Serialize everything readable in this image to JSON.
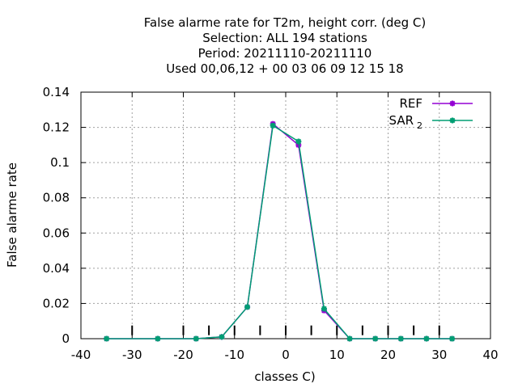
{
  "chart_data": {
    "type": "line",
    "title_lines": [
      "False alarme rate  for T2m, height corr. (deg C)",
      "Selection: ALL    194 stations",
      "Period: 20211110-20211110",
      "Used  00,06,12  + 00 03 06 09 12 15 18"
    ],
    "xlabel": "classes C)",
    "ylabel": "False alarme rate",
    "xlim": [
      -40,
      40
    ],
    "ylim": [
      0,
      0.14
    ],
    "xticks": [
      -40,
      -30,
      -20,
      -10,
      0,
      10,
      20,
      30,
      40
    ],
    "yticks": [
      0,
      0.02,
      0.04,
      0.06,
      0.08,
      0.1,
      0.12,
      0.14
    ],
    "xtick_labels": [
      "-40",
      "-30",
      "-20",
      "-10",
      "0",
      "10",
      "20",
      "30",
      "40"
    ],
    "ytick_labels": [
      "0",
      "0.02",
      "0.04",
      "0.06",
      "0.08",
      "0.1",
      "0.12",
      "0.14"
    ],
    "grid": true,
    "legend_position": "top-right",
    "class_boundaries": [
      -30,
      -20,
      -15,
      -10,
      -5,
      0,
      5,
      10,
      15,
      20,
      25,
      30
    ],
    "series": [
      {
        "name": "REF",
        "color": "#9400d3",
        "x": [
          -35,
          -25,
          -17.5,
          -12.5,
          -7.5,
          -2.5,
          2.5,
          7.5,
          12.5,
          17.5,
          22.5,
          27.5,
          32.5
        ],
        "y": [
          0,
          0,
          0,
          0.001,
          0.018,
          0.122,
          0.11,
          0.016,
          0,
          0,
          0,
          0,
          0
        ]
      },
      {
        "name": "SAR",
        "name_subscript": "2",
        "color": "#009e73",
        "x": [
          -35,
          -25,
          -17.5,
          -12.5,
          -7.5,
          -2.5,
          2.5,
          7.5,
          12.5,
          17.5,
          22.5,
          27.5,
          32.5
        ],
        "y": [
          0,
          0,
          0,
          0.001,
          0.018,
          0.121,
          0.112,
          0.017,
          0,
          0,
          0,
          0,
          0
        ]
      }
    ]
  }
}
